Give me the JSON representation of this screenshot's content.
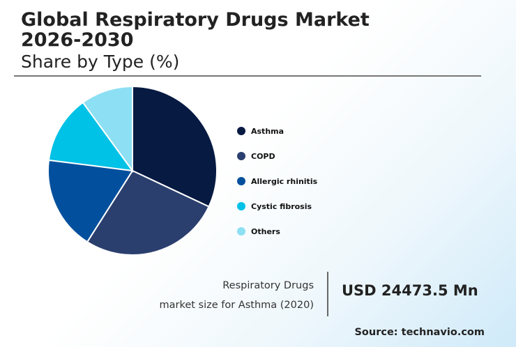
{
  "header": {
    "title": "Global Respiratory Drugs Market\n2026-2030",
    "subtitle": "Share by Type (%)"
  },
  "chart_data": {
    "type": "pie",
    "title": "Global Respiratory Drugs Market 2026-2030",
    "subtitle": "Share by Type (%)",
    "categories": [
      "Asthma",
      "COPD",
      "Allergic rhinitis",
      "Cystic fibrosis",
      "Others"
    ],
    "values": [
      32,
      27,
      18,
      13,
      10
    ],
    "colors": [
      "#061a42",
      "#2b3f6e",
      "#02509d",
      "#00c1e6",
      "#8ddff3"
    ],
    "legend_position": "right",
    "start_angle_deg": 0,
    "direction": "clockwise"
  },
  "callout": {
    "line1": "Respiratory Drugs",
    "line2": "market size for Asthma (2020)",
    "value": "USD 24473.5 Mn"
  },
  "source": "Source: technavio.com"
}
